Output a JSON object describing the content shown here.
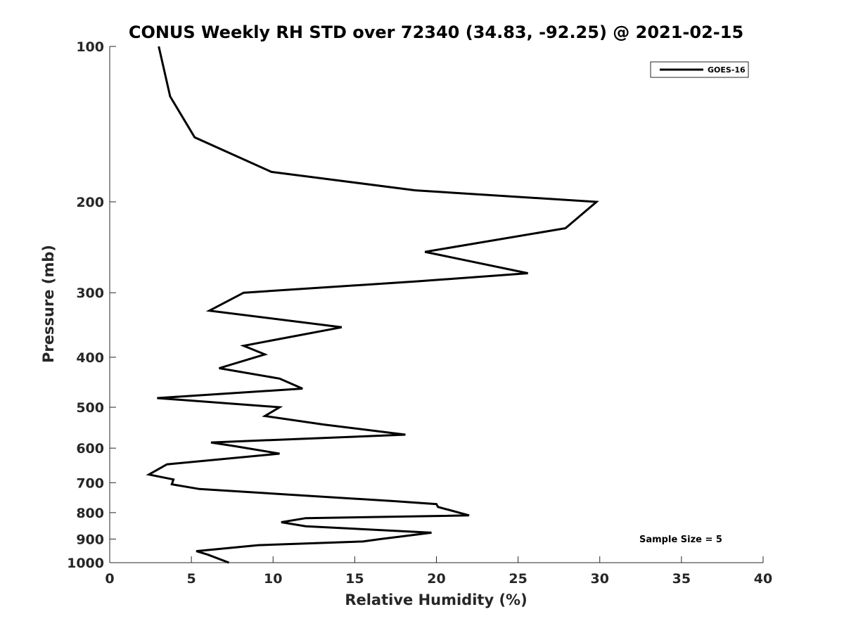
{
  "chart_data": {
    "type": "line",
    "title": "CONUS Weekly RH STD over 72340 (34.83, -92.25) @ 2021-02-15",
    "xlabel": "Relative Humidity (%)",
    "ylabel": "Pressure (mb)",
    "xlim": [
      0,
      40
    ],
    "ylim": [
      100,
      1000
    ],
    "yscale": "log",
    "yreversed": true,
    "xticks": [
      0,
      5,
      10,
      15,
      20,
      25,
      30,
      35,
      40
    ],
    "yticks": [
      100,
      200,
      300,
      400,
      500,
      600,
      700,
      800,
      900,
      1000
    ],
    "grid": false,
    "legend_position": "top-right",
    "annotation": "Sample Size = 5",
    "series": [
      {
        "name": "GOES-16",
        "color": "#000000",
        "points": [
          [
            3.0,
            100
          ],
          [
            3.7,
            125
          ],
          [
            5.2,
            150
          ],
          [
            9.9,
            175
          ],
          [
            18.7,
            190
          ],
          [
            29.8,
            200
          ],
          [
            27.9,
            225
          ],
          [
            19.3,
            250
          ],
          [
            25.6,
            275
          ],
          [
            18.9,
            285
          ],
          [
            8.2,
            300
          ],
          [
            6.1,
            325
          ],
          [
            14.2,
            350
          ],
          [
            8.2,
            380
          ],
          [
            9.5,
            395
          ],
          [
            6.7,
            420
          ],
          [
            10.4,
            440
          ],
          [
            11.8,
            460
          ],
          [
            2.9,
            480
          ],
          [
            10.4,
            500
          ],
          [
            9.5,
            520
          ],
          [
            13.1,
            540
          ],
          [
            18.1,
            565
          ],
          [
            6.2,
            585
          ],
          [
            7.7,
            595
          ],
          [
            10.4,
            615
          ],
          [
            3.5,
            645
          ],
          [
            2.4,
            675
          ],
          [
            3.9,
            690
          ],
          [
            3.8,
            705
          ],
          [
            5.5,
            720
          ],
          [
            17.4,
            760
          ],
          [
            20.0,
            770
          ],
          [
            20.1,
            780
          ],
          [
            22.0,
            810
          ],
          [
            12.0,
            820
          ],
          [
            10.5,
            835
          ],
          [
            12.0,
            850
          ],
          [
            19.7,
            875
          ],
          [
            16.6,
            900
          ],
          [
            15.5,
            910
          ],
          [
            9.1,
            925
          ],
          [
            5.3,
            950
          ],
          [
            6.0,
            965
          ],
          [
            7.3,
            1000
          ]
        ]
      }
    ]
  }
}
